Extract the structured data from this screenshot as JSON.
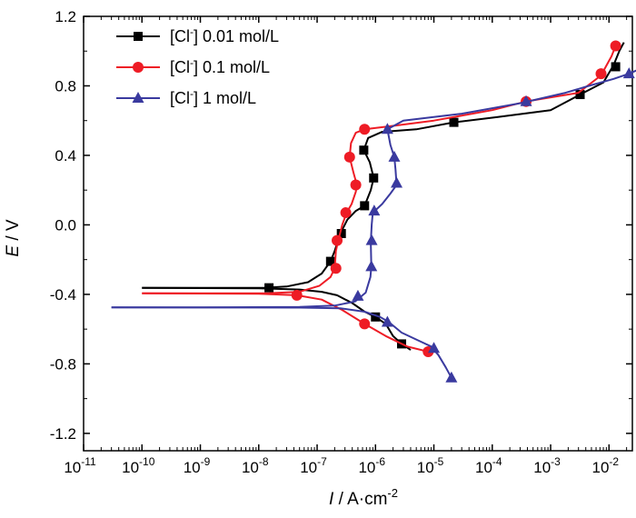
{
  "chart_data": {
    "type": "line",
    "title": "",
    "xlabel": {
      "italic": "I",
      "rest": " / A·cm",
      "sup": "-2"
    },
    "ylabel": {
      "italic": "E",
      "rest": " / V"
    },
    "x_scale": "log",
    "xlim_exponents": [
      -11,
      -1.6
    ],
    "ylim": [
      -1.3,
      1.2
    ],
    "x_ticks": [
      {
        "exp": -11,
        "base": "10",
        "sup": "-11"
      },
      {
        "exp": -10,
        "base": "10",
        "sup": "-10"
      },
      {
        "exp": -9,
        "base": "10",
        "sup": "-9"
      },
      {
        "exp": -8,
        "base": "10",
        "sup": "-8"
      },
      {
        "exp": -7,
        "base": "10",
        "sup": "-7"
      },
      {
        "exp": -6,
        "base": "10",
        "sup": "-6"
      },
      {
        "exp": -5,
        "base": "10",
        "sup": "-5"
      },
      {
        "exp": -4,
        "base": "10",
        "sup": "-4"
      },
      {
        "exp": -3,
        "base": "10",
        "sup": "-3"
      },
      {
        "exp": -2,
        "base": "10",
        "sup": "-2"
      }
    ],
    "y_ticks": [
      {
        "value": 1.2,
        "label": "1.2"
      },
      {
        "value": 0.8,
        "label": "0.8"
      },
      {
        "value": 0.4,
        "label": "0.4"
      },
      {
        "value": 0.0,
        "label": "0.0"
      },
      {
        "value": -0.4,
        "label": "-0.4"
      },
      {
        "value": -0.8,
        "label": "-0.8"
      },
      {
        "value": -1.2,
        "label": "-1.2"
      }
    ],
    "legend_position": "top-left",
    "series": [
      {
        "name": "[Cl⁻] 0.01 mol/L",
        "legend": {
          "pre": "[Cl",
          "sup": "-",
          "post": "] 0.01 mol/L"
        },
        "color": "#000000",
        "marker": "square",
        "anodic_curve": [
          [
            1e-10,
            -0.363
          ],
          [
            3e-09,
            -0.363
          ],
          [
            1.2e-08,
            -0.362
          ],
          [
            3e-08,
            -0.355
          ],
          [
            7e-08,
            -0.33
          ],
          [
            1.2e-07,
            -0.28
          ],
          [
            1.7e-07,
            -0.21
          ],
          [
            2e-07,
            -0.15
          ],
          [
            2.5e-07,
            -0.05
          ],
          [
            3.3e-07,
            0.03
          ],
          [
            4.6e-07,
            0.08
          ],
          [
            6.5e-07,
            0.11
          ],
          [
            8.3e-07,
            0.2
          ],
          [
            9.3e-07,
            0.27
          ],
          [
            8e-07,
            0.36
          ],
          [
            6.3e-07,
            0.43
          ],
          [
            7.5e-07,
            0.5
          ],
          [
            1.3e-06,
            0.535
          ],
          [
            5e-06,
            0.55
          ],
          [
            2.2e-05,
            0.59
          ],
          [
            0.00012,
            0.62
          ],
          [
            0.001,
            0.66
          ],
          [
            0.0032,
            0.75
          ],
          [
            0.008,
            0.82
          ],
          [
            0.012,
            0.92
          ],
          [
            0.015,
            1.0
          ],
          [
            0.018,
            1.05
          ]
        ],
        "cathodic_curve": [
          [
            1e-10,
            -0.363
          ],
          [
            1e-08,
            -0.365
          ],
          [
            5e-08,
            -0.372
          ],
          [
            1.2e-07,
            -0.385
          ],
          [
            2.2e-07,
            -0.405
          ],
          [
            4e-07,
            -0.45
          ],
          [
            6.5e-07,
            -0.5
          ],
          [
            1e-06,
            -0.53
          ],
          [
            1.5e-06,
            -0.57
          ],
          [
            2e-06,
            -0.64
          ],
          [
            2.8e-06,
            -0.685
          ],
          [
            4e-06,
            -0.72
          ]
        ],
        "markers": [
          [
            1.5e-08,
            -0.362
          ],
          [
            1.7e-07,
            -0.21
          ],
          [
            2.6e-07,
            -0.05
          ],
          [
            6.5e-07,
            0.11
          ],
          [
            9.3e-07,
            0.27
          ],
          [
            6.3e-07,
            0.43
          ],
          [
            2.2e-05,
            0.59
          ],
          [
            0.0032,
            0.75
          ],
          [
            0.013,
            0.91
          ],
          [
            1e-06,
            -0.53
          ],
          [
            2.8e-06,
            -0.685
          ]
        ]
      },
      {
        "name": "[Cl⁻] 0.1 mol/L",
        "legend": {
          "pre": "[Cl",
          "sup": "-",
          "post": "] 0.1 mol/L"
        },
        "color": "#ee1c25",
        "marker": "circle",
        "anodic_curve": [
          [
            1e-10,
            -0.394
          ],
          [
            3e-09,
            -0.394
          ],
          [
            1.5e-08,
            -0.393
          ],
          [
            5e-08,
            -0.385
          ],
          [
            1.1e-07,
            -0.35
          ],
          [
            1.7e-07,
            -0.3
          ],
          [
            2e-07,
            -0.25
          ],
          [
            2.1e-07,
            -0.15
          ],
          [
            2.3e-07,
            -0.09
          ],
          [
            2.7e-07,
            0.0
          ],
          [
            3.2e-07,
            0.07
          ],
          [
            3.9e-07,
            0.12
          ],
          [
            4.6e-07,
            0.19
          ],
          [
            4.8e-07,
            0.23
          ],
          [
            4.2e-07,
            0.3
          ],
          [
            3.6e-07,
            0.39
          ],
          [
            3.8e-07,
            0.47
          ],
          [
            4.6e-07,
            0.53
          ],
          [
            6.5e-07,
            0.55
          ],
          [
            2e-06,
            0.57
          ],
          [
            1e-05,
            0.6
          ],
          [
            0.0001,
            0.66
          ],
          [
            0.00038,
            0.71
          ],
          [
            0.003,
            0.76
          ],
          [
            0.0073,
            0.86
          ],
          [
            0.011,
            0.97
          ],
          [
            0.013,
            1.03
          ]
        ],
        "cathodic_curve": [
          [
            1e-10,
            -0.394
          ],
          [
            1e-08,
            -0.396
          ],
          [
            4.5e-08,
            -0.405
          ],
          [
            1.2e-07,
            -0.43
          ],
          [
            2.7e-07,
            -0.49
          ],
          [
            6.5e-07,
            -0.57
          ],
          [
            1.5e-06,
            -0.64
          ],
          [
            3.5e-06,
            -0.7
          ],
          [
            8e-06,
            -0.73
          ]
        ],
        "markers": [
          [
            4.5e-08,
            -0.405
          ],
          [
            2.1e-07,
            -0.25
          ],
          [
            2.2e-07,
            -0.09
          ],
          [
            3.1e-07,
            0.07
          ],
          [
            4.6e-07,
            0.23
          ],
          [
            3.6e-07,
            0.39
          ],
          [
            6.5e-07,
            0.55
          ],
          [
            0.00038,
            0.71
          ],
          [
            0.0073,
            0.87
          ],
          [
            0.013,
            1.03
          ],
          [
            6.5e-07,
            -0.57
          ],
          [
            8e-06,
            -0.73
          ]
        ]
      },
      {
        "name": "[Cl⁻] 1 mol/L",
        "legend": {
          "pre": "[Cl",
          "sup": "-",
          "post": "] 1 mol/L"
        },
        "color": "#3a3a9f",
        "marker": "triangle",
        "anodic_curve": [
          [
            3e-11,
            -0.475
          ],
          [
            1e-09,
            -0.475
          ],
          [
            5e-08,
            -0.472
          ],
          [
            2e-07,
            -0.465
          ],
          [
            4.5e-07,
            -0.44
          ],
          [
            6.8e-07,
            -0.39
          ],
          [
            8.2e-07,
            -0.3
          ],
          [
            8.5e-07,
            -0.24
          ],
          [
            8.3e-07,
            -0.1
          ],
          [
            8.6e-07,
            0.0
          ],
          [
            9e-07,
            0.07
          ],
          [
            1.3e-06,
            0.12
          ],
          [
            1.8e-06,
            0.18
          ],
          [
            2.3e-06,
            0.23
          ],
          [
            2.2e-06,
            0.32
          ],
          [
            2.1e-06,
            0.39
          ],
          [
            1.8e-06,
            0.46
          ],
          [
            1.6e-06,
            0.55
          ],
          [
            3e-06,
            0.6
          ],
          [
            3e-05,
            0.64
          ],
          [
            0.0003,
            0.7
          ],
          [
            0.0018,
            0.76
          ],
          [
            0.0045,
            0.8
          ],
          [
            0.012,
            0.84
          ],
          [
            0.022,
            0.87
          ],
          [
            0.035,
            0.9
          ]
        ],
        "cathodic_curve": [
          [
            3e-11,
            -0.475
          ],
          [
            5e-08,
            -0.476
          ],
          [
            2.5e-07,
            -0.48
          ],
          [
            6.5e-07,
            -0.5
          ],
          [
            1.2e-06,
            -0.53
          ],
          [
            1.7e-06,
            -0.56
          ],
          [
            2.8e-06,
            -0.62
          ],
          [
            5e-06,
            -0.66
          ],
          [
            9e-06,
            -0.7
          ],
          [
            1.2e-05,
            -0.75
          ],
          [
            1.6e-05,
            -0.82
          ],
          [
            2e-05,
            -0.88
          ]
        ],
        "markers": [
          [
            5e-07,
            -0.41
          ],
          [
            8.5e-07,
            -0.24
          ],
          [
            8.6e-07,
            -0.09
          ],
          [
            9.5e-07,
            0.08
          ],
          [
            2.3e-06,
            0.24
          ],
          [
            2.1e-06,
            0.39
          ],
          [
            1.6e-06,
            0.55
          ],
          [
            0.00038,
            0.71
          ],
          [
            0.022,
            0.87
          ],
          [
            1.6e-06,
            -0.56
          ],
          [
            1e-05,
            -0.71
          ],
          [
            2e-05,
            -0.88
          ]
        ]
      }
    ]
  }
}
